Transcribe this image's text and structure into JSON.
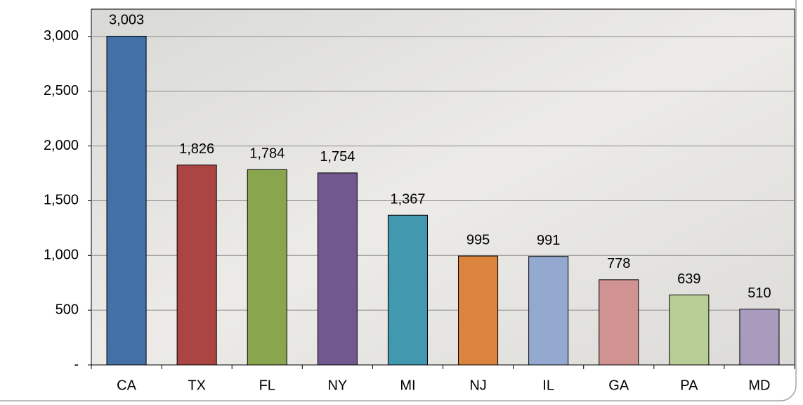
{
  "chart_data": {
    "type": "bar",
    "categories": [
      "CA",
      "TX",
      "FL",
      "NY",
      "MI",
      "NJ",
      "IL",
      "GA",
      "PA",
      "MD"
    ],
    "values": [
      3003,
      1826,
      1784,
      1754,
      1367,
      995,
      991,
      778,
      639,
      510
    ],
    "value_labels": [
      "3,003",
      "1,826",
      "1,784",
      "1,754",
      "1,367",
      "995",
      "991",
      "778",
      "639",
      "510"
    ],
    "colors": [
      "#4470a8",
      "#aa4543",
      "#89a54e",
      "#71588f",
      "#4198af",
      "#db843d",
      "#93a9cf",
      "#d19392",
      "#b9cd96",
      "#a99bbd"
    ],
    "ylim": [
      0,
      3250
    ],
    "yticks": [
      {
        "value": 0,
        "label": "-"
      },
      500,
      {
        "value": 1000,
        "label": "1,000"
      },
      {
        "value": 1500,
        "label": "1,500"
      },
      {
        "value": 2000,
        "label": "2,000"
      },
      {
        "value": 2500,
        "label": "2,500"
      },
      {
        "value": 3000,
        "label": "3,000"
      }
    ],
    "grid": true
  }
}
